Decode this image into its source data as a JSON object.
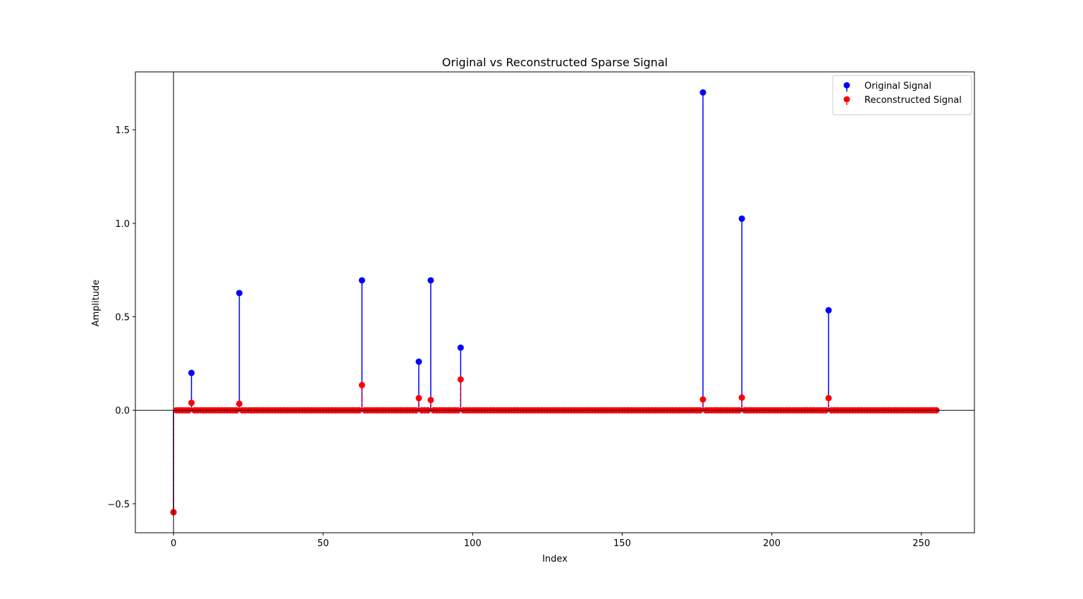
{
  "chart_data": {
    "type": "stem",
    "title": "Original vs Reconstructed Sparse Signal",
    "xlabel": "Index",
    "ylabel": "Amplitude",
    "xlim": [
      -12.75,
      267.75
    ],
    "ylim": [
      -0.655,
      1.81
    ],
    "xticks": [
      0,
      50,
      100,
      150,
      200,
      250
    ],
    "xtick_labels": [
      "0",
      "50",
      "100",
      "150",
      "200",
      "250"
    ],
    "yticks": [
      -0.5,
      0.0,
      0.5,
      1.0,
      1.5
    ],
    "ytick_labels": [
      "−0.5",
      "0.0",
      "0.5",
      "1.0",
      "1.5"
    ],
    "grid": false,
    "baseline": 0,
    "length": 256,
    "legend": {
      "position": "top-right"
    },
    "colors": {
      "original": "#0000ff",
      "reconstructed": "#ff0000"
    },
    "series": [
      {
        "name": "Original Signal",
        "color": "#0000ff",
        "nonzero": [
          {
            "x": 0,
            "y": -0.545
          },
          {
            "x": 6,
            "y": 0.2
          },
          {
            "x": 22,
            "y": 0.627
          },
          {
            "x": 63,
            "y": 0.695
          },
          {
            "x": 82,
            "y": 0.26
          },
          {
            "x": 86,
            "y": 0.695
          },
          {
            "x": 96,
            "y": 0.335
          },
          {
            "x": 177,
            "y": 1.7
          },
          {
            "x": 190,
            "y": 1.025
          },
          {
            "x": 219,
            "y": 0.535
          }
        ]
      },
      {
        "name": "Reconstructed Signal",
        "color": "#ff0000",
        "nonzero": [
          {
            "x": 0,
            "y": -0.545
          },
          {
            "x": 6,
            "y": 0.04
          },
          {
            "x": 22,
            "y": 0.035
          },
          {
            "x": 63,
            "y": 0.135
          },
          {
            "x": 82,
            "y": 0.065
          },
          {
            "x": 86,
            "y": 0.055
          },
          {
            "x": 96,
            "y": 0.165
          },
          {
            "x": 177,
            "y": 0.058
          },
          {
            "x": 190,
            "y": 0.068
          },
          {
            "x": 219,
            "y": 0.065
          }
        ]
      }
    ]
  }
}
